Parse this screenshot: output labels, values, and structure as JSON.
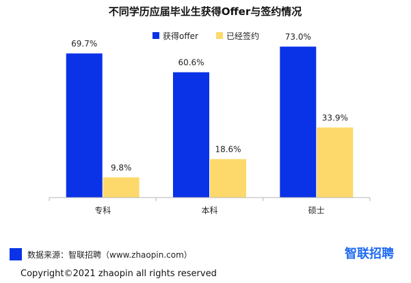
{
  "footer": {
    "source": "数据来源：智联招聘（www.zhaopin.com）",
    "brand": "智联招聘",
    "copyright": "Copyright©2021 zhaopin all rights reserved"
  },
  "colors": {
    "offer": "#0a32e6",
    "signed": "#fdd96b",
    "axis": "#b5b5b5",
    "source_box": "#0a32e6",
    "brand": "#1e6af2"
  },
  "chart_data": {
    "type": "bar",
    "title": "不同学历应届毕业生获得Offer与签约情况",
    "categories": [
      "专科",
      "本科",
      "硕士"
    ],
    "series": [
      {
        "name": "获得offer",
        "values": [
          69.7,
          60.6,
          73.0
        ],
        "labels": [
          "69.7%",
          "60.6%",
          "73.0%"
        ]
      },
      {
        "name": "已经签约",
        "values": [
          9.8,
          18.6,
          33.9
        ],
        "labels": [
          "9.8%",
          "18.6%",
          "33.9%"
        ]
      }
    ],
    "legend_position": "top-center",
    "grid": false,
    "ylim": [
      0,
      80
    ]
  }
}
